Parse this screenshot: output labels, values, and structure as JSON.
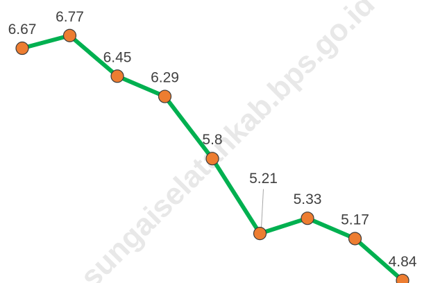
{
  "chart_data": {
    "type": "line",
    "watermark": "sungaiselatankab.bps.go.id",
    "categories": [
      null,
      null,
      null,
      null,
      null,
      null,
      null,
      null,
      null
    ],
    "series": [
      {
        "name": null,
        "color": "#00b050",
        "marker_color": "#ed7d31",
        "values": [
          6.67,
          6.77,
          6.45,
          6.29,
          5.8,
          5.21,
          5.33,
          5.17,
          4.84
        ]
      }
    ],
    "ylim": [
      4.82,
      7.05
    ]
  }
}
